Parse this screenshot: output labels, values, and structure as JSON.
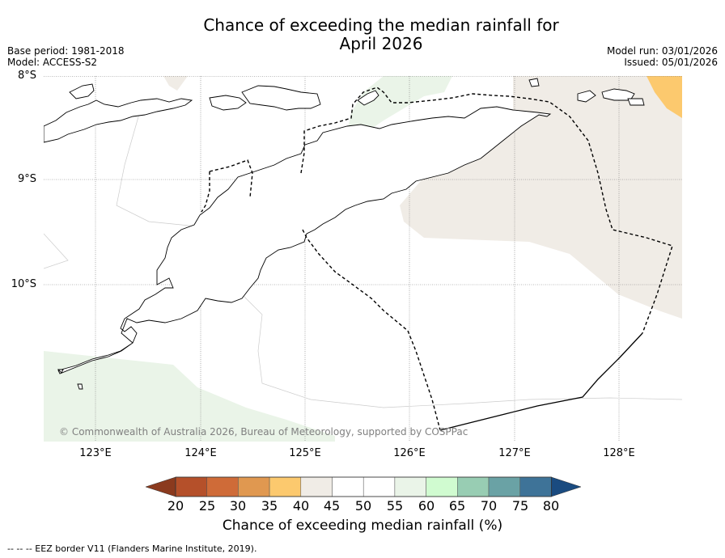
{
  "header": {
    "title_line1": "Chance of exceeding the median rainfall for",
    "title_line2": "April 2026",
    "base_period": "Base period: 1981-2018",
    "model": "Model: ACCESS-S2",
    "model_run": "Model run: 03/01/2026",
    "issued": "Issued: 05/01/2026"
  },
  "map": {
    "lat_labels": [
      "8°S",
      "9°S",
      "10°S"
    ],
    "lon_labels": [
      "123°E",
      "124°E",
      "125°E",
      "126°E",
      "127°E",
      "128°E"
    ],
    "copyright": "© Commonwealth of Australia 2026, Bureau of Meteorology, supported by COSPPac"
  },
  "legend": {
    "title": "Chance of exceeding median rainfall (%)",
    "ticks": [
      "20",
      "25",
      "30",
      "35",
      "40",
      "45",
      "50",
      "55",
      "60",
      "65",
      "70",
      "75",
      "80"
    ],
    "colors": {
      "below20": "#8b3a1e",
      "c20_25": "#b5502a",
      "c25_30": "#cf6b38",
      "c30_35": "#e09850",
      "c35_40": "#fcc96e",
      "c40_45": "#f0ece6",
      "c45_50": "#ffffff",
      "c50_55": "#ffffff",
      "c55_60": "#eaf4e8",
      "c60_65": "#d0fbd0",
      "c65_70": "#98cdb3",
      "c70_75": "#6aa2a5",
      "c75_80": "#3e7398",
      "above80": "#1a4b80"
    }
  },
  "footer": {
    "eez_note": "--  --  -- EEZ border V11 (Flanders Marine Institute, 2019)."
  }
}
